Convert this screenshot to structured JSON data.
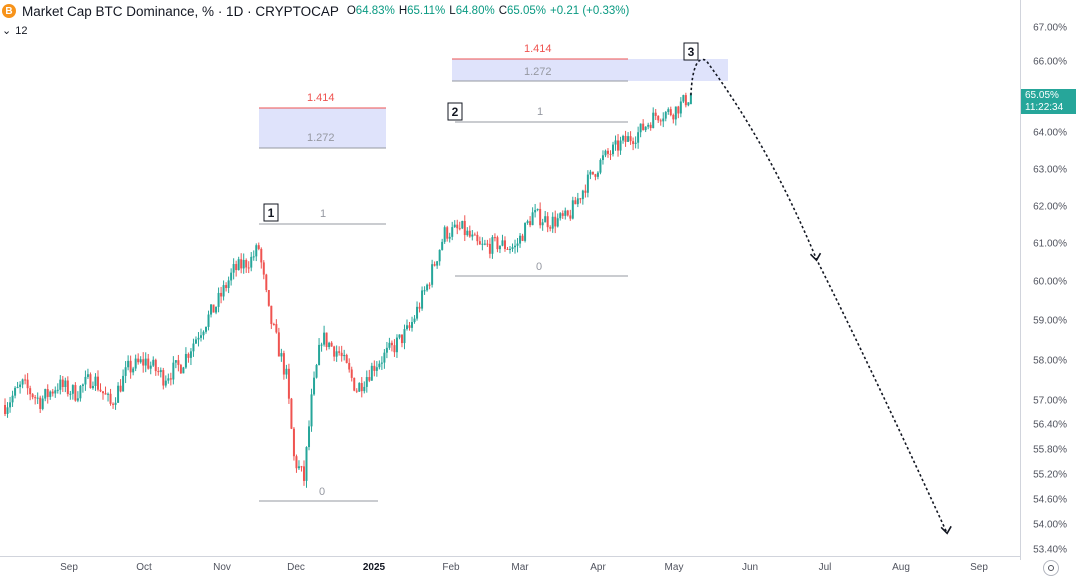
{
  "header": {
    "symbol_icon": "B",
    "title": "Market Cap BTC Dominance, % · 1D · CRYPTOCAP",
    "ohlc": [
      {
        "k": "O",
        "v": "64.83%"
      },
      {
        "k": "H",
        "v": "65.11%"
      },
      {
        "k": "L",
        "v": "64.80%"
      },
      {
        "k": "C",
        "v": "65.05%"
      },
      {
        "k": "",
        "v": "+0.21 (+0.33%)"
      }
    ],
    "indicator_toggle": "⌄",
    "indicator_count": "12"
  },
  "price_axis": {
    "labels": [
      "67.00%",
      "66.00%",
      "65.00%",
      "64.00%",
      "63.00%",
      "62.00%",
      "61.00%",
      "60.00%",
      "59.00%",
      "58.00%",
      "57.00%",
      "56.40%",
      "55.80%",
      "55.20%",
      "54.60%",
      "54.00%",
      "53.40%"
    ],
    "current_price": "65.05%",
    "countdown": "11:22:34"
  },
  "time_axis": {
    "labels": [
      {
        "text": "Sep",
        "bold": false
      },
      {
        "text": "Oct",
        "bold": false
      },
      {
        "text": "Nov",
        "bold": false
      },
      {
        "text": "Dec",
        "bold": false
      },
      {
        "text": "2025",
        "bold": true
      },
      {
        "text": "Feb",
        "bold": false
      },
      {
        "text": "Mar",
        "bold": false
      },
      {
        "text": "Apr",
        "bold": false
      },
      {
        "text": "May",
        "bold": false
      },
      {
        "text": "Jun",
        "bold": false
      },
      {
        "text": "Jul",
        "bold": false
      },
      {
        "text": "Aug",
        "bold": false
      },
      {
        "text": "Sep",
        "bold": false
      }
    ]
  },
  "annotations": {
    "wave_labels": [
      "1",
      "2",
      "3"
    ],
    "fib_levels": {
      "first": {
        "one": "1",
        "zero": "0",
        "ext1": "1.272",
        "ext2": "1.414"
      },
      "second": {
        "one": "1",
        "zero": "0",
        "ext1": "1.272",
        "ext2": "1.414"
      }
    }
  },
  "colors": {
    "up": "#26a69a",
    "down": "#ef5350",
    "fib_zone": "#dfe3fb",
    "fib_ext": "#ef5350",
    "fib_base": "#9598a1",
    "price_tag": "#26a69a"
  },
  "chart_data": {
    "type": "candlestick",
    "title": "Market Cap BTC Dominance, % · 1D · CRYPTOCAP",
    "x_range": [
      "2024-08-10",
      "2025-09-20"
    ],
    "ylim": [
      53.4,
      67.5
    ],
    "series": [
      {
        "values": [
          [
            "2024-08-12",
            56.9
          ],
          [
            "2024-08-19",
            57.4
          ],
          [
            "2024-08-26",
            57.0
          ],
          [
            "2024-09-02",
            57.4
          ],
          [
            "2024-09-09",
            57.2
          ],
          [
            "2024-09-16",
            57.6
          ],
          [
            "2024-09-23",
            56.9
          ],
          [
            "2024-09-30",
            57.8
          ],
          [
            "2024-10-07",
            58.0
          ],
          [
            "2024-10-14",
            57.6
          ],
          [
            "2024-10-21",
            57.9
          ],
          [
            "2024-10-28",
            58.7
          ],
          [
            "2024-11-04",
            59.4
          ],
          [
            "2024-11-11",
            60.3
          ],
          [
            "2024-11-18",
            60.6
          ],
          [
            "2024-11-21",
            60.9
          ],
          [
            "2024-11-25",
            59.2
          ],
          [
            "2024-12-02",
            57.6
          ],
          [
            "2024-12-05",
            55.6
          ],
          [
            "2024-12-09",
            55.1
          ],
          [
            "2024-12-12",
            57.0
          ],
          [
            "2024-12-16",
            58.6
          ],
          [
            "2024-12-23",
            58.2
          ],
          [
            "2024-12-30",
            57.3
          ],
          [
            "2025-01-06",
            57.9
          ],
          [
            "2025-01-13",
            58.3
          ],
          [
            "2025-01-20",
            58.8
          ],
          [
            "2025-01-27",
            59.9
          ],
          [
            "2025-02-03",
            61.3
          ],
          [
            "2025-02-10",
            61.4
          ],
          [
            "2025-02-17",
            60.9
          ],
          [
            "2025-02-24",
            61.0
          ],
          [
            "2025-03-03",
            60.9
          ],
          [
            "2025-03-10",
            61.8
          ],
          [
            "2025-03-17",
            61.6
          ],
          [
            "2025-03-24",
            61.7
          ],
          [
            "2025-03-31",
            62.6
          ],
          [
            "2025-04-07",
            63.3
          ],
          [
            "2025-04-14",
            63.7
          ],
          [
            "2025-04-21",
            64.0
          ],
          [
            "2025-04-28",
            64.5
          ],
          [
            "2025-05-05",
            64.6
          ],
          [
            "2025-05-12",
            65.05
          ]
        ]
      }
    ],
    "projection": [
      [
        "2025-05-12",
        65.05
      ],
      [
        "2025-05-18",
        66.05
      ],
      [
        "2025-06-05",
        64.2
      ],
      [
        "2025-07-01",
        60.6
      ],
      [
        "2025-08-22",
        53.8
      ]
    ]
  }
}
